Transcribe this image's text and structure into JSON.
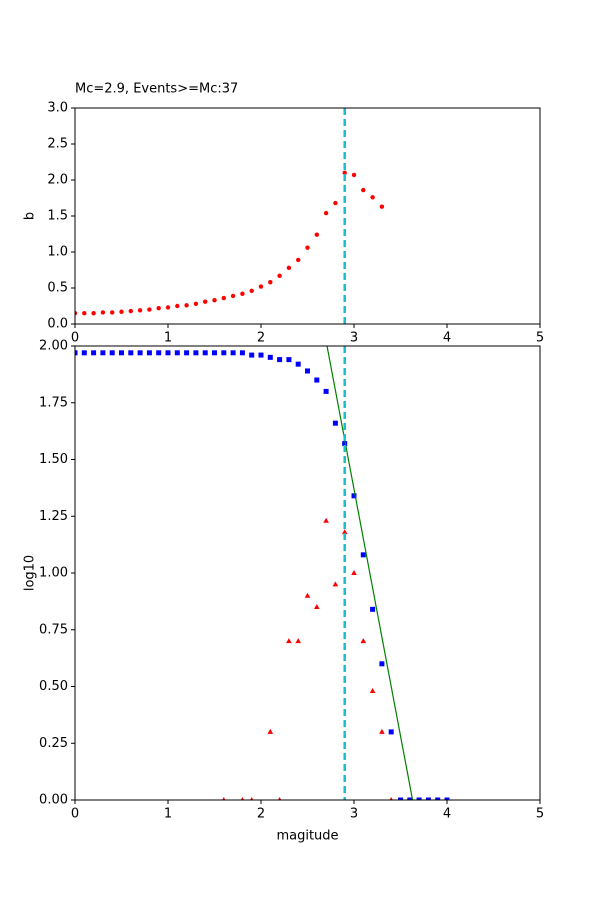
{
  "chart_data": [
    {
      "type": "scatter",
      "title": "Mc=2.9, Events>=Mc:37",
      "ylabel": "b",
      "xlim": [
        0,
        5
      ],
      "ylim": [
        0,
        3
      ],
      "xticks": [
        0,
        1,
        2,
        3,
        4,
        5
      ],
      "yticks": [
        {
          "value": 0,
          "label": "0.0"
        },
        {
          "value": 0.5,
          "label": "0.5"
        },
        {
          "value": 1,
          "label": "1.0"
        },
        {
          "value": 1.5,
          "label": "1.5"
        },
        {
          "value": 2,
          "label": "2.0"
        },
        {
          "value": 2.5,
          "label": "2.5"
        },
        {
          "value": 3,
          "label": "3.0"
        }
      ],
      "vline": {
        "x": 2.9,
        "color": "#17becf"
      },
      "series": [
        {
          "marker": "circle",
          "color": "#ff0000",
          "x": [
            0,
            0.1,
            0.2,
            0.3,
            0.4,
            0.5,
            0.6,
            0.7,
            0.8,
            0.9,
            1.0,
            1.1,
            1.2,
            1.3,
            1.4,
            1.5,
            1.6,
            1.7,
            1.8,
            1.9,
            2.0,
            2.1,
            2.2,
            2.3,
            2.4,
            2.5,
            2.6,
            2.7,
            2.8,
            2.9,
            3.0,
            3.1,
            3.2,
            3.3
          ],
          "values": [
            0.15,
            0.15,
            0.15,
            0.16,
            0.16,
            0.17,
            0.18,
            0.19,
            0.2,
            0.22,
            0.23,
            0.25,
            0.26,
            0.28,
            0.31,
            0.33,
            0.36,
            0.39,
            0.42,
            0.46,
            0.52,
            0.58,
            0.67,
            0.78,
            0.89,
            1.06,
            1.24,
            1.54,
            1.68,
            2.1,
            2.07,
            1.86,
            1.76,
            1.63
          ]
        }
      ]
    },
    {
      "type": "scatter",
      "xlabel": "magitude",
      "ylabel": "log10",
      "xlim": [
        0,
        5
      ],
      "ylim": [
        0,
        2
      ],
      "xticks": [
        0,
        1,
        2,
        3,
        4,
        5
      ],
      "yticks": [
        {
          "value": 0,
          "label": "0.00"
        },
        {
          "value": 0.25,
          "label": "0.25"
        },
        {
          "value": 0.5,
          "label": "0.50"
        },
        {
          "value": 0.75,
          "label": "0.75"
        },
        {
          "value": 1,
          "label": "1.00"
        },
        {
          "value": 1.25,
          "label": "1.25"
        },
        {
          "value": 1.5,
          "label": "1.50"
        },
        {
          "value": 1.75,
          "label": "1.75"
        },
        {
          "value": 2,
          "label": "2.00"
        }
      ],
      "vline": {
        "x": 2.9,
        "color": "#17becf"
      },
      "series": [
        {
          "marker": "square",
          "color": "#0000ff",
          "x": [
            0,
            0.1,
            0.2,
            0.3,
            0.4,
            0.5,
            0.6,
            0.7,
            0.8,
            0.9,
            1.0,
            1.1,
            1.2,
            1.3,
            1.4,
            1.5,
            1.6,
            1.7,
            1.8,
            1.9,
            2.0,
            2.1,
            2.2,
            2.3,
            2.4,
            2.5,
            2.6,
            2.7,
            2.8,
            2.9,
            3.0,
            3.1,
            3.2,
            3.3,
            3.4,
            3.5,
            3.6,
            3.7,
            3.8,
            3.9,
            4.0
          ],
          "values": [
            1.97,
            1.97,
            1.97,
            1.97,
            1.97,
            1.97,
            1.97,
            1.97,
            1.97,
            1.97,
            1.97,
            1.97,
            1.97,
            1.97,
            1.97,
            1.97,
            1.97,
            1.97,
            1.97,
            1.96,
            1.96,
            1.95,
            1.94,
            1.94,
            1.92,
            1.89,
            1.85,
            1.8,
            1.66,
            1.57,
            1.34,
            1.08,
            0.84,
            0.6,
            0.3,
            0,
            0,
            0,
            0,
            0,
            0
          ]
        },
        {
          "marker": "triangle",
          "color": "#ff0000",
          "x": [
            1.6,
            1.8,
            1.9,
            2.1,
            2.2,
            2.3,
            2.4,
            2.5,
            2.6,
            2.7,
            2.8,
            2.9,
            3.0,
            3.1,
            3.2,
            3.3,
            3.4
          ],
          "values": [
            0,
            0,
            0,
            0.3,
            0,
            0.7,
            0.7,
            0.9,
            0.85,
            1.23,
            0.95,
            1.18,
            1.0,
            0.7,
            0.48,
            0.3,
            0
          ]
        },
        {
          "marker": "line",
          "color": "#008000",
          "x": [
            2.71,
            3.63
          ],
          "values": [
            2.0,
            0
          ]
        }
      ]
    }
  ]
}
